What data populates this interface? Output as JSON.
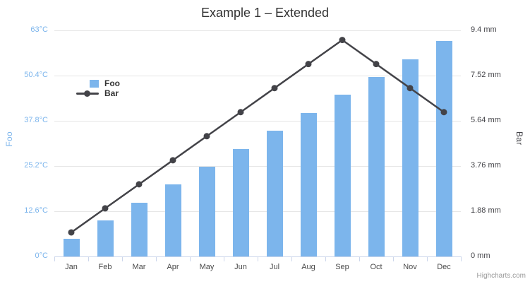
{
  "title": "Example 1 – Extended",
  "credits": "Highcharts.com",
  "legend": {
    "items": [
      {
        "label": "Foo",
        "type": "column",
        "color": "#7cb5ec"
      },
      {
        "label": "Bar",
        "type": "line",
        "color": "#434348"
      }
    ]
  },
  "chart_data": {
    "type": "combo",
    "title": "Example 1 – Extended",
    "categories": [
      "Jan",
      "Feb",
      "Mar",
      "Apr",
      "May",
      "Jun",
      "Jul",
      "Aug",
      "Sep",
      "Oct",
      "Nov",
      "Dec"
    ],
    "series": [
      {
        "name": "Foo",
        "type": "bar",
        "axis": "left",
        "color": "#7cb5ec",
        "values": [
          5,
          10,
          15,
          20,
          25,
          30,
          35,
          40,
          45,
          50,
          55,
          60
        ]
      },
      {
        "name": "Bar",
        "type": "line",
        "axis": "right",
        "color": "#434348",
        "values": [
          1,
          2,
          3,
          4,
          5,
          6,
          7,
          8,
          9,
          8,
          7,
          6
        ]
      }
    ],
    "axes": {
      "left": {
        "title": "Foo",
        "unit": "°C",
        "min": 0,
        "max": 63,
        "color": "#7cb5ec",
        "tick_labels": [
          "0°C",
          "12.6°C",
          "25.2°C",
          "37.8°C",
          "50.4°C",
          "63°C"
        ]
      },
      "right": {
        "title": "Bar",
        "unit": "mm",
        "min": 0,
        "max": 9.4,
        "color": "#434348",
        "tick_labels": [
          "0 mm",
          "1.88 mm",
          "3.76 mm",
          "5.64 mm",
          "7.52 mm",
          "9.4 mm"
        ]
      }
    },
    "grid": true,
    "grid_color": "#e6e6e6",
    "axis_line_color": "#ccd6eb",
    "legend_position": "inside-top-left"
  }
}
